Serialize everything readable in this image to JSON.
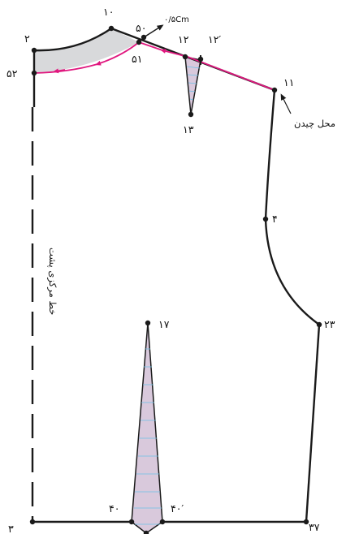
{
  "labels": {
    "p2": "۲",
    "p10": "۱۰",
    "p50": "۵۰",
    "p50_note": "۰/۵Cm",
    "p12": "۱۲",
    "p12p": "۱۲′",
    "p52": "۵۲",
    "p51": "۵۱",
    "p11": "۱۱",
    "p13": "۱۳",
    "fold_note": "محل چیدن",
    "p4": "۴",
    "center_back": "خط مرکزی پشت",
    "p23": "۲۳",
    "p17": "۱۷",
    "p40": "۴۰",
    "p40p": "۴۰′",
    "p3": "۳",
    "p37": "۳۷"
  },
  "colors": {
    "outline": "#1a1a1a",
    "magenta_line": "#e0187f",
    "neck_fill": "#d8d9db",
    "dart_fill": "#d9c9dc",
    "dart_hatch": "#6cc0e6"
  }
}
